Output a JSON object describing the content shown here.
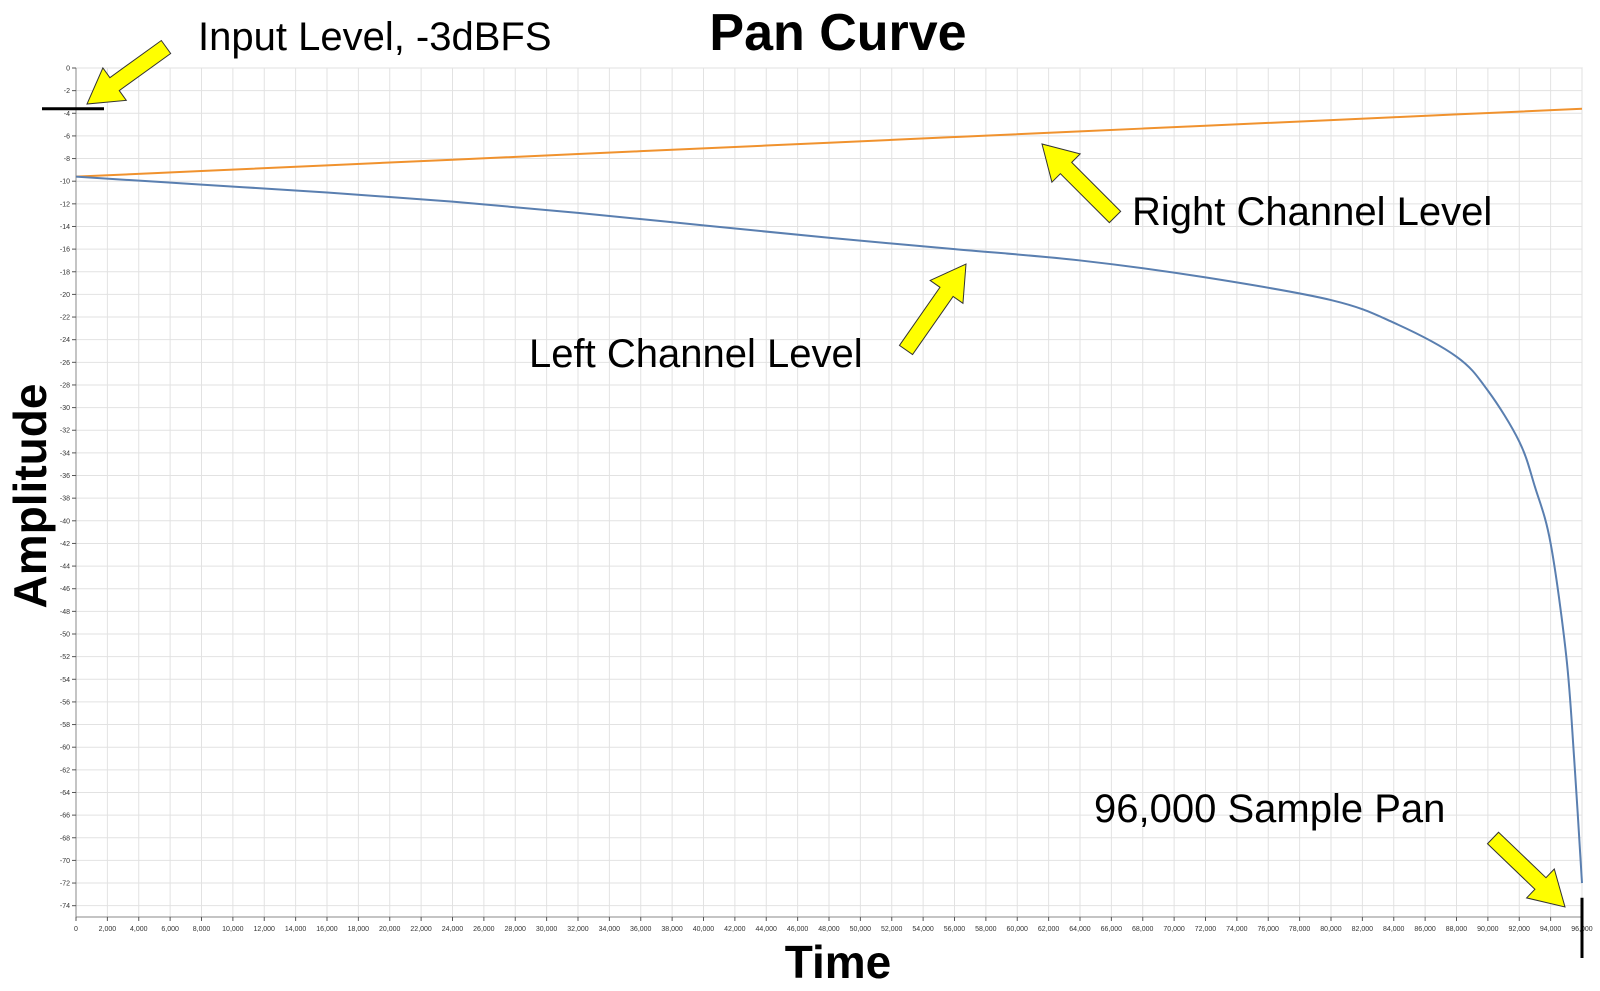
{
  "chart_data": {
    "type": "line",
    "title": "Pan Curve",
    "xlabel": "Time",
    "ylabel": "Amplitude",
    "xlim": [
      0,
      96000
    ],
    "ylim": [
      -75,
      0
    ],
    "x_tick_step": 2000,
    "y_tick_step": 2,
    "grid": true,
    "series": [
      {
        "key": "right",
        "color": "#f0922e",
        "x": [
          0,
          8000,
          16000,
          24000,
          32000,
          40000,
          48000,
          56000,
          64000,
          72000,
          80000,
          88000,
          96000
        ],
        "y": [
          -9.6,
          -9.1,
          -8.6,
          -8.1,
          -7.6,
          -7.1,
          -6.6,
          -6.1,
          -5.6,
          -5.1,
          -4.6,
          -4.1,
          -3.6
        ]
      },
      {
        "key": "left",
        "color": "#5a7fb0",
        "x": [
          0,
          8000,
          16000,
          24000,
          32000,
          40000,
          48000,
          56000,
          64000,
          72000,
          80000,
          84000,
          88000,
          90000,
          92000,
          93000,
          94000,
          95000,
          95500,
          96000
        ],
        "y": [
          -9.6,
          -10.3,
          -11.0,
          -11.8,
          -12.8,
          -13.9,
          -15.0,
          -16.0,
          -17.0,
          -18.5,
          -20.5,
          -22.5,
          -25.5,
          -28.5,
          -33.0,
          -37.0,
          -42.0,
          -52.0,
          -61.0,
          -72.0
        ]
      }
    ],
    "annotations": {
      "input_level": "Input Level, -3dBFS",
      "right_channel": "Right Channel Level",
      "left_channel": "Left Channel Level",
      "sample_pan": "96,000 Sample Pan"
    },
    "arrow_color": "#ffff00"
  }
}
